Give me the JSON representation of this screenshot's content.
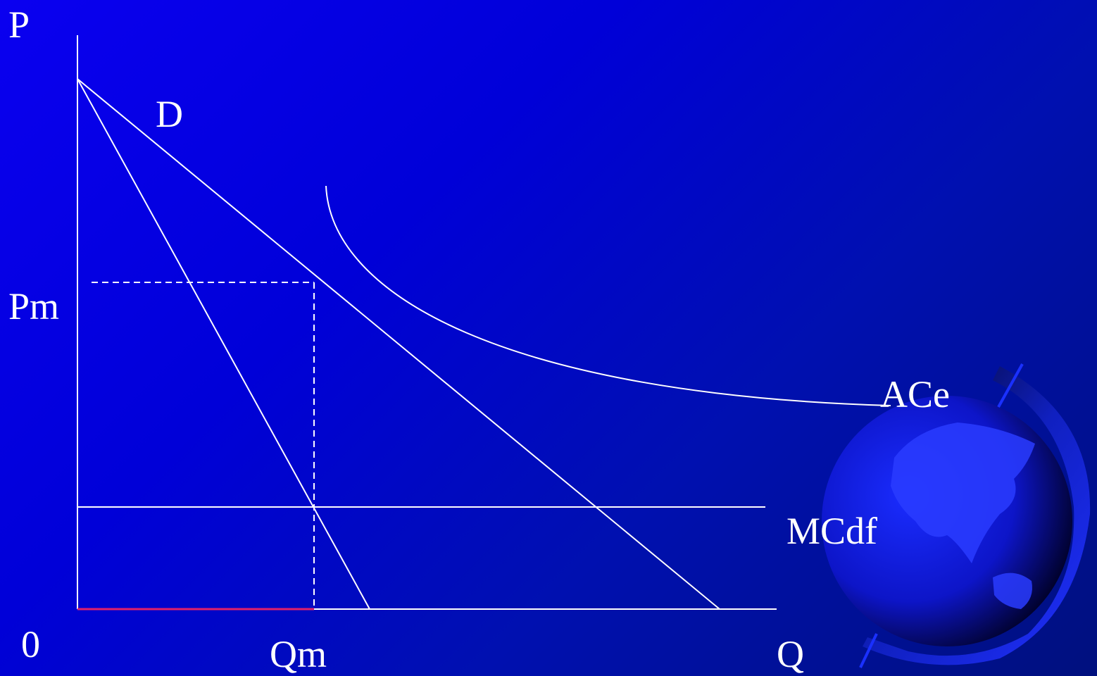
{
  "labels": {
    "p_axis": "P",
    "q_axis": "Q",
    "origin": "0",
    "demand": "D",
    "pm": "Pm",
    "qm": "Qm",
    "ace": "ACe",
    "mcdf": "MCdf"
  },
  "colors": {
    "line": "#ffffff",
    "highlight_segment": "#e0206a",
    "background_start": "#0a00f0",
    "background_end": "#00107e"
  },
  "icons": [
    "globe-icon"
  ]
}
